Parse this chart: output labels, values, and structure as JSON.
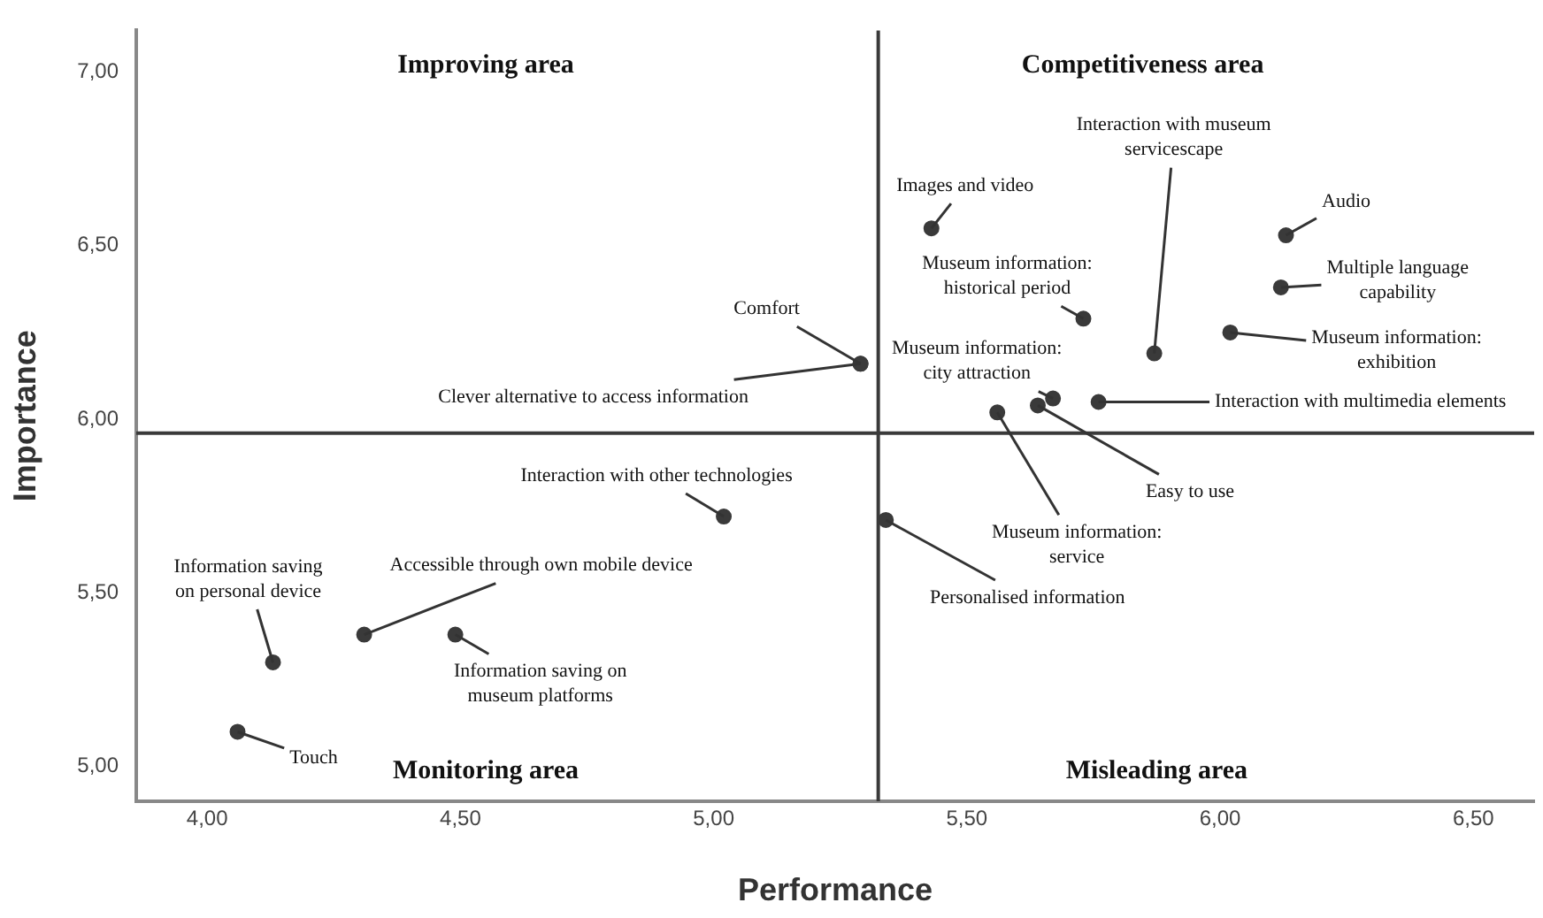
{
  "chart_data": {
    "type": "scatter",
    "xlabel": "Performance",
    "ylabel": "Importance",
    "color": "#3a3a3a",
    "marker": "circle",
    "grid": false,
    "legend": false,
    "x": [
      5.29,
      5.29,
      5.43,
      5.73,
      5.87,
      6.13,
      6.12,
      6.02,
      5.76,
      5.67,
      5.64,
      5.56,
      5.34,
      5.02,
      4.31,
      4.13,
      4.49,
      4.06
    ],
    "values": [
      6.16,
      6.16,
      6.55,
      6.29,
      6.19,
      6.53,
      6.38,
      6.25,
      6.05,
      6.06,
      6.04,
      6.02,
      5.71,
      5.72,
      5.38,
      5.3,
      5.38,
      5.1
    ],
    "xlim": [
      3.86,
      6.62
    ],
    "ylim": [
      4.9,
      7.12
    ],
    "xticks": [
      {
        "value": 4,
        "label": "4,00"
      },
      {
        "value": 4.5,
        "label": "4,50"
      },
      {
        "value": 5,
        "label": "5,00"
      },
      {
        "value": 5.5,
        "label": "5,50"
      },
      {
        "value": 6,
        "label": "6,00"
      },
      {
        "value": 6.5,
        "label": "6,50"
      }
    ],
    "yticks": [
      {
        "value": 5,
        "label": "5,00"
      },
      {
        "value": 5.5,
        "label": "5,50"
      },
      {
        "value": 6,
        "label": "6,00"
      },
      {
        "value": 6.5,
        "label": "6,50"
      },
      {
        "value": 7,
        "label": "7,00"
      }
    ],
    "ref_lines": [
      {
        "axis": "x",
        "value": 5.325,
        "color": "#3a3a3a"
      },
      {
        "axis": "y",
        "value": 5.96,
        "color": "#3a3a3a"
      }
    ],
    "annotations": [
      "Improving area",
      "Competitiveness area",
      "Monitoring area",
      "Misleading area",
      {
        "text": "Comfort",
        "x": 5.29,
        "y": 6.16
      },
      {
        "text": "Clever alternative to access information",
        "x": 5.29,
        "y": 6.16
      },
      {
        "text": "Images and video",
        "x": 5.43,
        "y": 6.55
      },
      {
        "text": "Museum information:\nhistorical period",
        "x": 5.73,
        "y": 6.29
      },
      {
        "text": "Interaction with museum\nservicescape",
        "x": 5.87,
        "y": 6.19
      },
      {
        "text": "Audio",
        "x": 6.13,
        "y": 6.53
      },
      {
        "text": "Multiple language\ncapability",
        "x": 6.12,
        "y": 6.38
      },
      {
        "text": "Museum information:\nexhibition",
        "x": 6.02,
        "y": 6.25
      },
      {
        "text": "Interaction with multimedia elements",
        "x": 5.76,
        "y": 6.05
      },
      {
        "text": "Museum information:\ncity attraction",
        "x": 5.67,
        "y": 6.06
      },
      {
        "text": "Easy to use",
        "x": 5.64,
        "y": 6.04
      },
      {
        "text": "Museum information:\nservice",
        "x": 5.56,
        "y": 6.02
      },
      {
        "text": "Personalised information",
        "x": 5.34,
        "y": 5.71
      },
      {
        "text": "Interaction with other technologies",
        "x": 5.02,
        "y": 5.72
      },
      {
        "text": "Accessible through own mobile device",
        "x": 4.31,
        "y": 5.38
      },
      {
        "text": "Information saving\non personal device",
        "x": 4.13,
        "y": 5.3
      },
      {
        "text": "Information saving on\nmuseum platforms",
        "x": 4.49,
        "y": 5.38
      },
      {
        "text": "Touch",
        "x": 4.06,
        "y": 5.1
      }
    ]
  }
}
